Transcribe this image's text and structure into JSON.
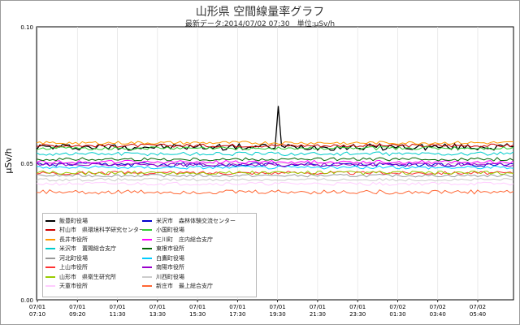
{
  "header": {
    "title": "山形県 空間線量率グラフ",
    "subtitle": "最新データ:2014/07/02 07:30　単位:μSv/h"
  },
  "chart_data": {
    "type": "line",
    "title": "山形県 空間線量率グラフ",
    "subtitle": "最新データ:2014/07/02 07:30　単位:μSv/h",
    "xlabel": "",
    "ylabel": "μSv/h",
    "ylim": [
      0,
      0.1
    ],
    "xlim": [
      "2014-07-01 07:10",
      "2014-07-02 07:30"
    ],
    "grid": true,
    "legend_position": "bottom-left",
    "y_ticks": [
      "0.00",
      "0.05",
      "0.10"
    ],
    "x_ticks": [
      {
        "date": "07/01",
        "time": "07:10"
      },
      {
        "date": "07/01",
        "time": "09:20"
      },
      {
        "date": "07/01",
        "time": "11:30"
      },
      {
        "date": "07/01",
        "time": "13:30"
      },
      {
        "date": "07/01",
        "time": "15:30"
      },
      {
        "date": "07/01",
        "time": "17:30"
      },
      {
        "date": "07/01",
        "time": "19:30"
      },
      {
        "date": "07/01",
        "time": "21:30"
      },
      {
        "date": "07/01",
        "time": "23:30"
      },
      {
        "date": "07/02",
        "time": "01:30"
      },
      {
        "date": "07/02",
        "time": "03:40"
      },
      {
        "date": "07/02",
        "time": "05:40"
      }
    ],
    "series": [
      {
        "name": "飯豊町役場",
        "color": "#000000",
        "base": 0.056,
        "jitter": 0.0012,
        "events": [
          {
            "t": "2014-07-01 19:30",
            "value": 0.071
          }
        ]
      },
      {
        "name": "村山市　県環境科学研究センター",
        "color": "#cc0000",
        "base": 0.0565,
        "jitter": 0.0006
      },
      {
        "name": "長井市役所",
        "color": "#ff9900",
        "base": 0.0575,
        "jitter": 0.0006
      },
      {
        "name": "米沢市　置賜総合支庁",
        "color": "#00cccc",
        "base": 0.0535,
        "jitter": 0.0007
      },
      {
        "name": "河北町役場",
        "color": "#999999",
        "base": 0.0455,
        "jitter": 0.0005
      },
      {
        "name": "上山市役所",
        "color": "#ff3333",
        "base": 0.0465,
        "jitter": 0.0006
      },
      {
        "name": "山形市　県衛生研究所",
        "color": "#99cc00",
        "base": 0.0465,
        "jitter": 0.0007
      },
      {
        "name": "天童市役所",
        "color": "#ffccff",
        "base": 0.0425,
        "jitter": 0.0006
      },
      {
        "name": "米沢市　森林体験交流センター",
        "color": "#0000cc",
        "base": 0.0495,
        "jitter": 0.0008
      },
      {
        "name": "小国町役場",
        "color": "#33cc33",
        "base": 0.0555,
        "jitter": 0.0006
      },
      {
        "name": "三川町　庄内総合支庁",
        "color": "#ff00ff",
        "base": 0.0505,
        "jitter": 0.0006
      },
      {
        "name": "東根市役所",
        "color": "#006600",
        "base": 0.0515,
        "jitter": 0.0006
      },
      {
        "name": "白鷹町役場",
        "color": "#00ccff",
        "base": 0.0485,
        "jitter": 0.0006
      },
      {
        "name": "南陽市役所",
        "color": "#9900cc",
        "base": 0.0495,
        "jitter": 0.0006
      },
      {
        "name": "川西町役場",
        "color": "#cccccc",
        "base": 0.044,
        "jitter": 0.0005
      },
      {
        "name": "新庄市　最上総合支庁",
        "color": "#ff6633",
        "base": 0.0395,
        "jitter": 0.0008
      }
    ]
  }
}
